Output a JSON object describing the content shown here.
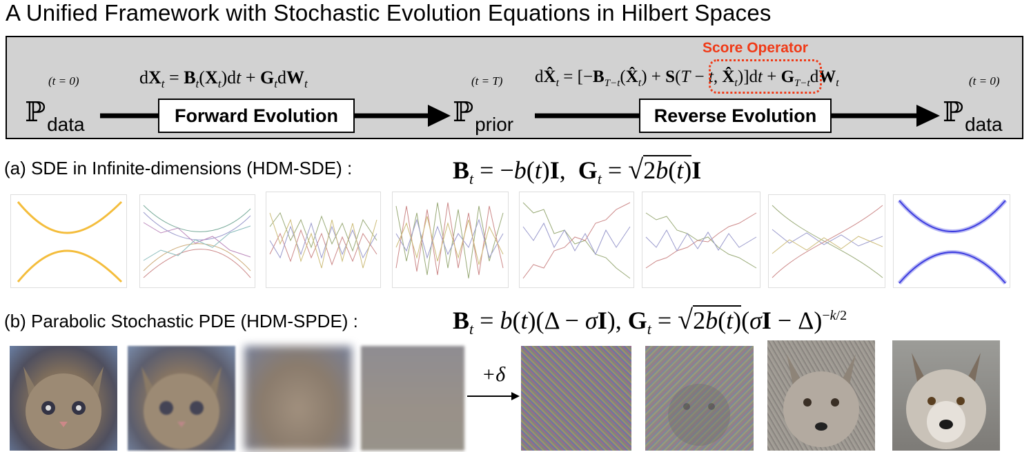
{
  "title": "A Unified Framework with Stochastic Evolution Equations in Hilbert Spaces",
  "panel": {
    "p_data_left": "data",
    "p_prior": "prior",
    "p_data_right": "data",
    "t_left": "(t = 0)",
    "t_mid": "(t = T)",
    "t_right": "(t = 0)",
    "forward_eq": "dXₜ = Bₜ(Xₜ)dt + GₜdWₜ",
    "reverse_eq_a": "dX̂ₜ = [−B_{T−t}(X̂ₜ) +",
    "reverse_eq_b": "S(T − t, X̂ₜ)",
    "reverse_eq_c": "]dt + G_{T−t}dWₜ",
    "forward_label": "Forward Evolution",
    "reverse_label": "Reverse Evolution",
    "score_label": "Score Operator"
  },
  "row_a": {
    "label": "(a) SDE in Infinite-dimensions (HDM-SDE) :",
    "equation": "Bₜ = −b(t)I,  Gₜ = √2b(t) I"
  },
  "row_b": {
    "label": "(b) Parabolic Stochastic PDE (HDM-SPDE) :",
    "equation": "Bₜ = b(t)(Δ − σI), Gₜ = √2b(t) (σI − Δ)^(−k/2)",
    "delta_label": "+δ"
  },
  "colors": {
    "panel_bg": "#d2d2d2",
    "score": "#f03a17",
    "gold": "#f4bd3c",
    "blue": "#3a3adf"
  }
}
